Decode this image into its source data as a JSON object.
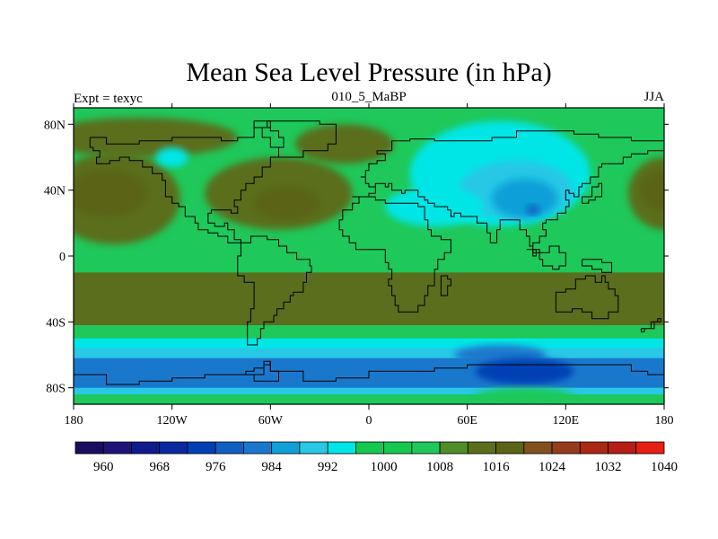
{
  "chart_data": {
    "type": "heatmap",
    "title": "Mean Sea Level Pressure (in hPa)",
    "left_label": "Expt = texyc",
    "center_label": "010_5_MaBP",
    "right_label": "JJA",
    "xlim": [
      -180,
      180
    ],
    "ylim": [
      -90,
      90
    ],
    "x_ticks": [
      {
        "value": -180,
        "label": "180"
      },
      {
        "value": -120,
        "label": "120W"
      },
      {
        "value": -60,
        "label": "60W"
      },
      {
        "value": 0,
        "label": "0"
      },
      {
        "value": 60,
        "label": "60E"
      },
      {
        "value": 120,
        "label": "120E"
      },
      {
        "value": 180,
        "label": "180"
      }
    ],
    "y_ticks": [
      {
        "value": 80,
        "label": "80N"
      },
      {
        "value": 40,
        "label": "40N"
      },
      {
        "value": 0,
        "label": "0"
      },
      {
        "value": -40,
        "label": "40S"
      },
      {
        "value": -80,
        "label": "80S"
      }
    ],
    "colorbar": {
      "levels": [
        960,
        964,
        968,
        972,
        976,
        980,
        984,
        988,
        992,
        996,
        1000,
        1004,
        1008,
        1012,
        1016,
        1020,
        1024,
        1028,
        1032,
        1036,
        1040
      ],
      "labels": [
        "960",
        "968",
        "976",
        "984",
        "992",
        "1000",
        "1008",
        "1016",
        "1024",
        "1032",
        "1040"
      ],
      "colors": [
        "#1a0c5e",
        "#1e1478",
        "#101c8c",
        "#0a28a0",
        "#0040b4",
        "#1060c4",
        "#1a78cc",
        "#10a0d8",
        "#28c8e6",
        "#00e6e6",
        "#14c850",
        "#14c850",
        "#1ec85a",
        "#508c28",
        "#5a6e1e",
        "#5a6414",
        "#82501e",
        "#963c1e",
        "#aa2814",
        "#b41e14",
        "#e61e14"
      ]
    },
    "zonal_background": [
      {
        "lat_from": 90,
        "lat_to": 72,
        "value": 1010
      },
      {
        "lat_from": 72,
        "lat_to": -10,
        "value": 1010
      },
      {
        "lat_from": -10,
        "lat_to": -42,
        "value": 1018
      },
      {
        "lat_from": -42,
        "lat_to": -50,
        "value": 1010
      },
      {
        "lat_from": -50,
        "lat_to": -56,
        "value": 998
      },
      {
        "lat_from": -56,
        "lat_to": -62,
        "value": 994
      },
      {
        "lat_from": -62,
        "lat_to": -80,
        "value": 986
      },
      {
        "lat_from": -80,
        "lat_to": -84,
        "value": 994
      },
      {
        "lat_from": -84,
        "lat_to": -90,
        "value": 1010
      }
    ],
    "pressure_cells": [
      {
        "lon": -155,
        "lat": 35,
        "rlon": 40,
        "rlat": 28,
        "value": 1016
      },
      {
        "lon": -160,
        "lat": 38,
        "rlon": 25,
        "rlat": 14,
        "value": 1022
      },
      {
        "lon": -140,
        "lat": 72,
        "rlon": 60,
        "rlat": 12,
        "value": 1016
      },
      {
        "lon": 180,
        "lat": 38,
        "rlon": 22,
        "rlat": 22,
        "value": 1016
      },
      {
        "lon": 178,
        "lat": 40,
        "rlon": 12,
        "rlat": 12,
        "value": 1022
      },
      {
        "lon": -55,
        "lat": 38,
        "rlon": 45,
        "rlat": 22,
        "value": 1016
      },
      {
        "lon": -50,
        "lat": 32,
        "rlon": 20,
        "rlat": 10,
        "value": 1022
      },
      {
        "lon": -15,
        "lat": 68,
        "rlon": 30,
        "rlat": 12,
        "value": 1016
      },
      {
        "lon": 80,
        "lat": 50,
        "rlon": 55,
        "rlat": 32,
        "value": 998
      },
      {
        "lon": 90,
        "lat": 40,
        "rlon": 35,
        "rlat": 18,
        "value": 994
      },
      {
        "lon": 95,
        "lat": 35,
        "rlon": 20,
        "rlat": 12,
        "value": 988
      },
      {
        "lon": 100,
        "lat": 28,
        "rlon": 4,
        "rlat": 3,
        "value": 982
      },
      {
        "lon": 40,
        "lat": 30,
        "rlon": 30,
        "rlat": 12,
        "value": 998
      },
      {
        "lon": -120,
        "lat": 60,
        "rlon": 10,
        "rlat": 6,
        "value": 998
      },
      {
        "lon": 80,
        "lat": -60,
        "rlon": 28,
        "rlat": 6,
        "value": 986
      },
      {
        "lon": 95,
        "lat": -70,
        "rlon": 30,
        "rlat": 8,
        "value": 978
      },
      {
        "lon": 95,
        "lat": -85,
        "rlon": 30,
        "rlat": 5,
        "value": 1010
      }
    ]
  }
}
